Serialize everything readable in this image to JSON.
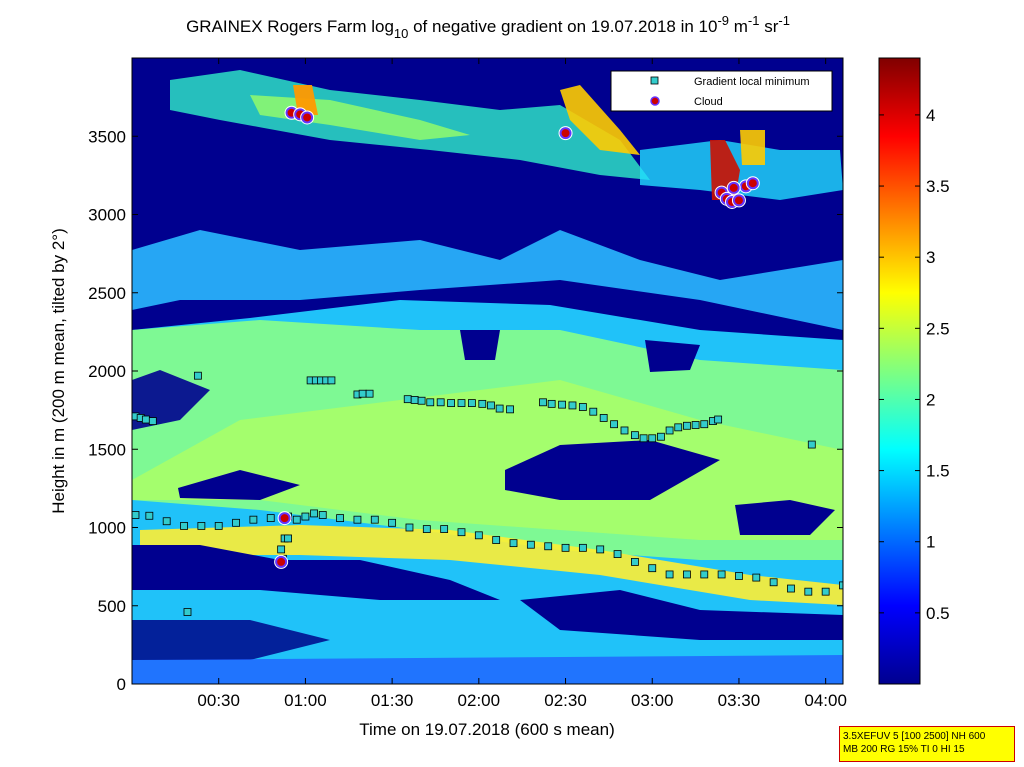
{
  "chart_data": {
    "type": "heatmap",
    "title": {
      "prefix": "GRAINEX Rogers Farm log",
      "sub": "10",
      "middle": " of negative gradient on 19.07.2018 in 10",
      "sup1": "-9",
      "unit1": " m",
      "sup2": "-1",
      "unit2": " sr",
      "sup3": "-1"
    },
    "xlabel": "Time on 19.07.2018 (600 s mean)",
    "ylabel": "Height in m (200 m mean, tilted by 2°)",
    "x_range_hours": [
      0.0,
      4.1
    ],
    "ylim": [
      0,
      4000
    ],
    "x_ticks": [
      {
        "label": "00:30",
        "value": 0.5
      },
      {
        "label": "01:00",
        "value": 1.0
      },
      {
        "label": "01:30",
        "value": 1.5
      },
      {
        "label": "02:00",
        "value": 2.0
      },
      {
        "label": "02:30",
        "value": 2.5
      },
      {
        "label": "03:00",
        "value": 3.0
      },
      {
        "label": "03:30",
        "value": 3.5
      },
      {
        "label": "04:00",
        "value": 4.0
      }
    ],
    "y_ticks": [
      0,
      500,
      1000,
      1500,
      2000,
      2500,
      3000,
      3500
    ],
    "colorbar": {
      "range": [
        0,
        4.4
      ],
      "ticks": [
        "0.5",
        "1",
        "1.5",
        "2",
        "2.5",
        "3",
        "3.5",
        "4"
      ],
      "tick_values": [
        0.5,
        1,
        1.5,
        2,
        2.5,
        3,
        3.5,
        4
      ],
      "colormap": "jet"
    },
    "legend": {
      "position": "top-right",
      "entries": [
        {
          "label": "Gradient local minimum",
          "marker": "square",
          "color": "#33cccc"
        },
        {
          "label": "Cloud",
          "marker": "circle",
          "color": "#cc0000"
        }
      ]
    },
    "series": [
      {
        "name": "Gradient local minimum",
        "points": [
          [
            0.02,
            1710
          ],
          [
            0.05,
            1700
          ],
          [
            0.08,
            1690
          ],
          [
            0.12,
            1680
          ],
          [
            0.38,
            1970
          ],
          [
            1.03,
            1940
          ],
          [
            1.06,
            1940
          ],
          [
            1.09,
            1940
          ],
          [
            1.12,
            1940
          ],
          [
            1.15,
            1940
          ],
          [
            1.3,
            1850
          ],
          [
            1.33,
            1855
          ],
          [
            1.37,
            1855
          ],
          [
            1.59,
            1820
          ],
          [
            1.63,
            1815
          ],
          [
            1.67,
            1810
          ],
          [
            1.72,
            1800
          ],
          [
            1.78,
            1800
          ],
          [
            1.84,
            1795
          ],
          [
            1.9,
            1795
          ],
          [
            1.96,
            1795
          ],
          [
            2.02,
            1790
          ],
          [
            2.07,
            1780
          ],
          [
            2.12,
            1760
          ],
          [
            2.18,
            1755
          ],
          [
            2.37,
            1800
          ],
          [
            2.42,
            1790
          ],
          [
            2.48,
            1785
          ],
          [
            2.54,
            1780
          ],
          [
            2.6,
            1770
          ],
          [
            2.66,
            1740
          ],
          [
            2.72,
            1700
          ],
          [
            2.78,
            1660
          ],
          [
            2.84,
            1620
          ],
          [
            2.9,
            1590
          ],
          [
            2.95,
            1570
          ],
          [
            3.0,
            1570
          ],
          [
            3.05,
            1580
          ],
          [
            3.1,
            1620
          ],
          [
            3.15,
            1640
          ],
          [
            3.2,
            1650
          ],
          [
            3.25,
            1655
          ],
          [
            3.3,
            1660
          ],
          [
            3.35,
            1680
          ],
          [
            3.38,
            1690
          ],
          [
            3.92,
            1530
          ],
          [
            0.02,
            1080
          ],
          [
            0.1,
            1075
          ],
          [
            0.2,
            1040
          ],
          [
            0.3,
            1010
          ],
          [
            0.4,
            1010
          ],
          [
            0.5,
            1010
          ],
          [
            0.6,
            1030
          ],
          [
            0.7,
            1050
          ],
          [
            0.8,
            1060
          ],
          [
            0.9,
            1070
          ],
          [
            0.95,
            1050
          ],
          [
            1.0,
            1070
          ],
          [
            1.05,
            1090
          ],
          [
            1.1,
            1080
          ],
          [
            1.2,
            1060
          ],
          [
            1.3,
            1050
          ],
          [
            1.4,
            1050
          ],
          [
            1.5,
            1030
          ],
          [
            1.6,
            1000
          ],
          [
            1.7,
            990
          ],
          [
            1.8,
            990
          ],
          [
            1.9,
            970
          ],
          [
            2.0,
            950
          ],
          [
            2.1,
            920
          ],
          [
            2.2,
            900
          ],
          [
            2.3,
            890
          ],
          [
            2.4,
            880
          ],
          [
            2.5,
            870
          ],
          [
            2.6,
            870
          ],
          [
            2.7,
            860
          ],
          [
            2.8,
            830
          ],
          [
            2.9,
            780
          ],
          [
            3.0,
            740
          ],
          [
            3.1,
            700
          ],
          [
            3.2,
            700
          ],
          [
            3.3,
            700
          ],
          [
            3.4,
            700
          ],
          [
            3.5,
            690
          ],
          [
            3.6,
            680
          ],
          [
            3.7,
            650
          ],
          [
            3.8,
            610
          ],
          [
            3.9,
            590
          ],
          [
            4.0,
            590
          ],
          [
            4.1,
            630
          ],
          [
            0.88,
            930
          ],
          [
            0.9,
            930
          ],
          [
            0.86,
            860
          ],
          [
            0.87,
            800
          ],
          [
            0.32,
            460
          ]
        ]
      },
      {
        "name": "Cloud",
        "points": [
          [
            0.86,
            780
          ],
          [
            0.88,
            1060
          ],
          [
            0.92,
            3650
          ],
          [
            0.97,
            3640
          ],
          [
            1.01,
            3620
          ],
          [
            2.5,
            3520
          ],
          [
            3.4,
            3140
          ],
          [
            3.43,
            3100
          ],
          [
            3.46,
            3080
          ],
          [
            3.5,
            3090
          ],
          [
            3.54,
            3180
          ],
          [
            3.58,
            3200
          ],
          [
            3.47,
            3170
          ]
        ]
      }
    ]
  },
  "info_box": {
    "line1": "3.5XEFUV 5 [100 2500] NH 600",
    "line2": "MB 200 RG 15% TI 0 HI 15"
  }
}
